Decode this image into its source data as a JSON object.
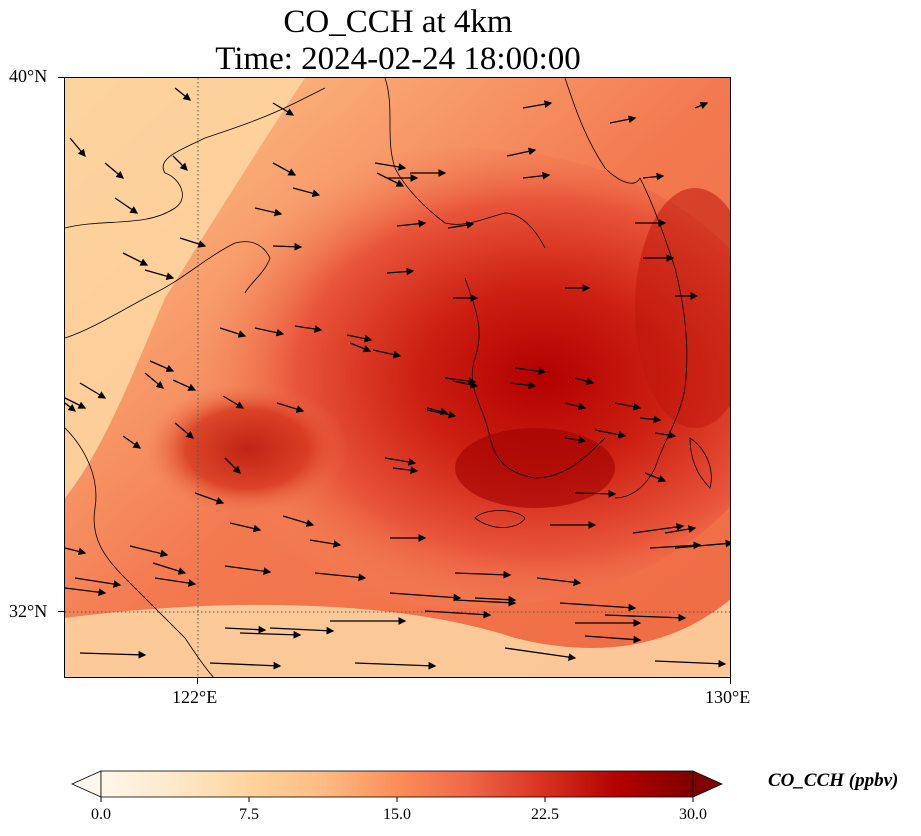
{
  "title": {
    "line1": "CO_CCH at 4km",
    "line2": "Time: 2024-02-24 18:00:00"
  },
  "map": {
    "variable": "CO_CCH",
    "level": "4km",
    "lat_range": [
      31.2,
      40.0
    ],
    "lon_range": [
      120.4,
      130.0
    ],
    "lat_ticks": [
      {
        "value": 40,
        "label": "40°N"
      },
      {
        "value": 32,
        "label": "32°N"
      }
    ],
    "lon_ticks": [
      {
        "value": 122,
        "label": "122°E"
      },
      {
        "value": 130,
        "label": "130°E"
      }
    ],
    "gridlines": "dotted",
    "field_description_colors": {
      "low": "#fff5eb",
      "mid": "#fc8d59",
      "high": "#7f0000"
    },
    "wind_vectors": "black arrows, predominantly eastward"
  },
  "colorbar": {
    "title": "CO_CCH (ppbv)",
    "min": 0.0,
    "max": 30.0,
    "tick_labels": [
      "0.0",
      "7.5",
      "15.0",
      "22.5",
      "30.0"
    ],
    "extend": "both",
    "colormap": "OrRd",
    "colors": [
      "#fff7ec",
      "#fee8c8",
      "#fdd49e",
      "#fdbb84",
      "#fc8d59",
      "#ef6548",
      "#d7301f",
      "#b30000",
      "#7f0000"
    ]
  }
}
